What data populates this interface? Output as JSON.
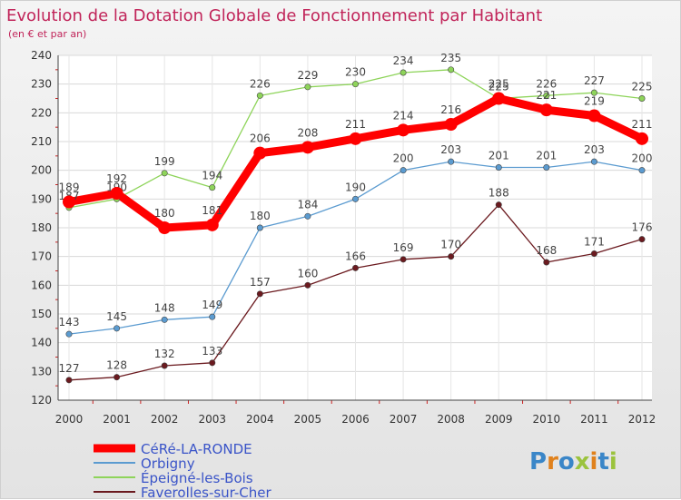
{
  "chart_data": {
    "type": "line",
    "title": "Evolution de la Dotation Globale de Fonctionnement par Habitant",
    "subtitle": "(en € et par an)",
    "x": [
      "2000",
      "2001",
      "2002",
      "2003",
      "2004",
      "2005",
      "2006",
      "2007",
      "2008",
      "2009",
      "2010",
      "2011",
      "2012"
    ],
    "ylim": [
      120,
      240
    ],
    "yticks": [
      120,
      130,
      140,
      150,
      160,
      170,
      180,
      190,
      200,
      210,
      220,
      230,
      240
    ],
    "grid": true,
    "series": [
      {
        "name": "Faverolles-sur-Cher",
        "color": "#6b1a1f",
        "values": [
          127,
          128,
          132,
          133,
          157,
          160,
          166,
          169,
          170,
          188,
          168,
          171,
          176
        ]
      },
      {
        "name": "Épeigné-les-Bois",
        "color": "#8ed45a",
        "values": [
          187,
          190,
          199,
          194,
          226,
          229,
          230,
          234,
          235,
          225,
          226,
          227,
          225
        ]
      },
      {
        "name": "Orbigny",
        "color": "#5b9bd0",
        "values": [
          143,
          145,
          148,
          149,
          180,
          184,
          190,
          200,
          203,
          201,
          201,
          203,
          200
        ]
      },
      {
        "name": "CéRé-LA-RONDE",
        "color": "#ff0000",
        "values": [
          189,
          192,
          180,
          181,
          206,
          208,
          211,
          214,
          216,
          225,
          221,
          219,
          211
        ]
      }
    ],
    "legend": {
      "placement": "bottom-left",
      "entries": [
        "CéRé-LA-RONDE",
        "Orbigny",
        "Épeigné-les-Bois",
        "Faverolles-sur-Cher"
      ]
    },
    "watermark": "Proxiti"
  }
}
